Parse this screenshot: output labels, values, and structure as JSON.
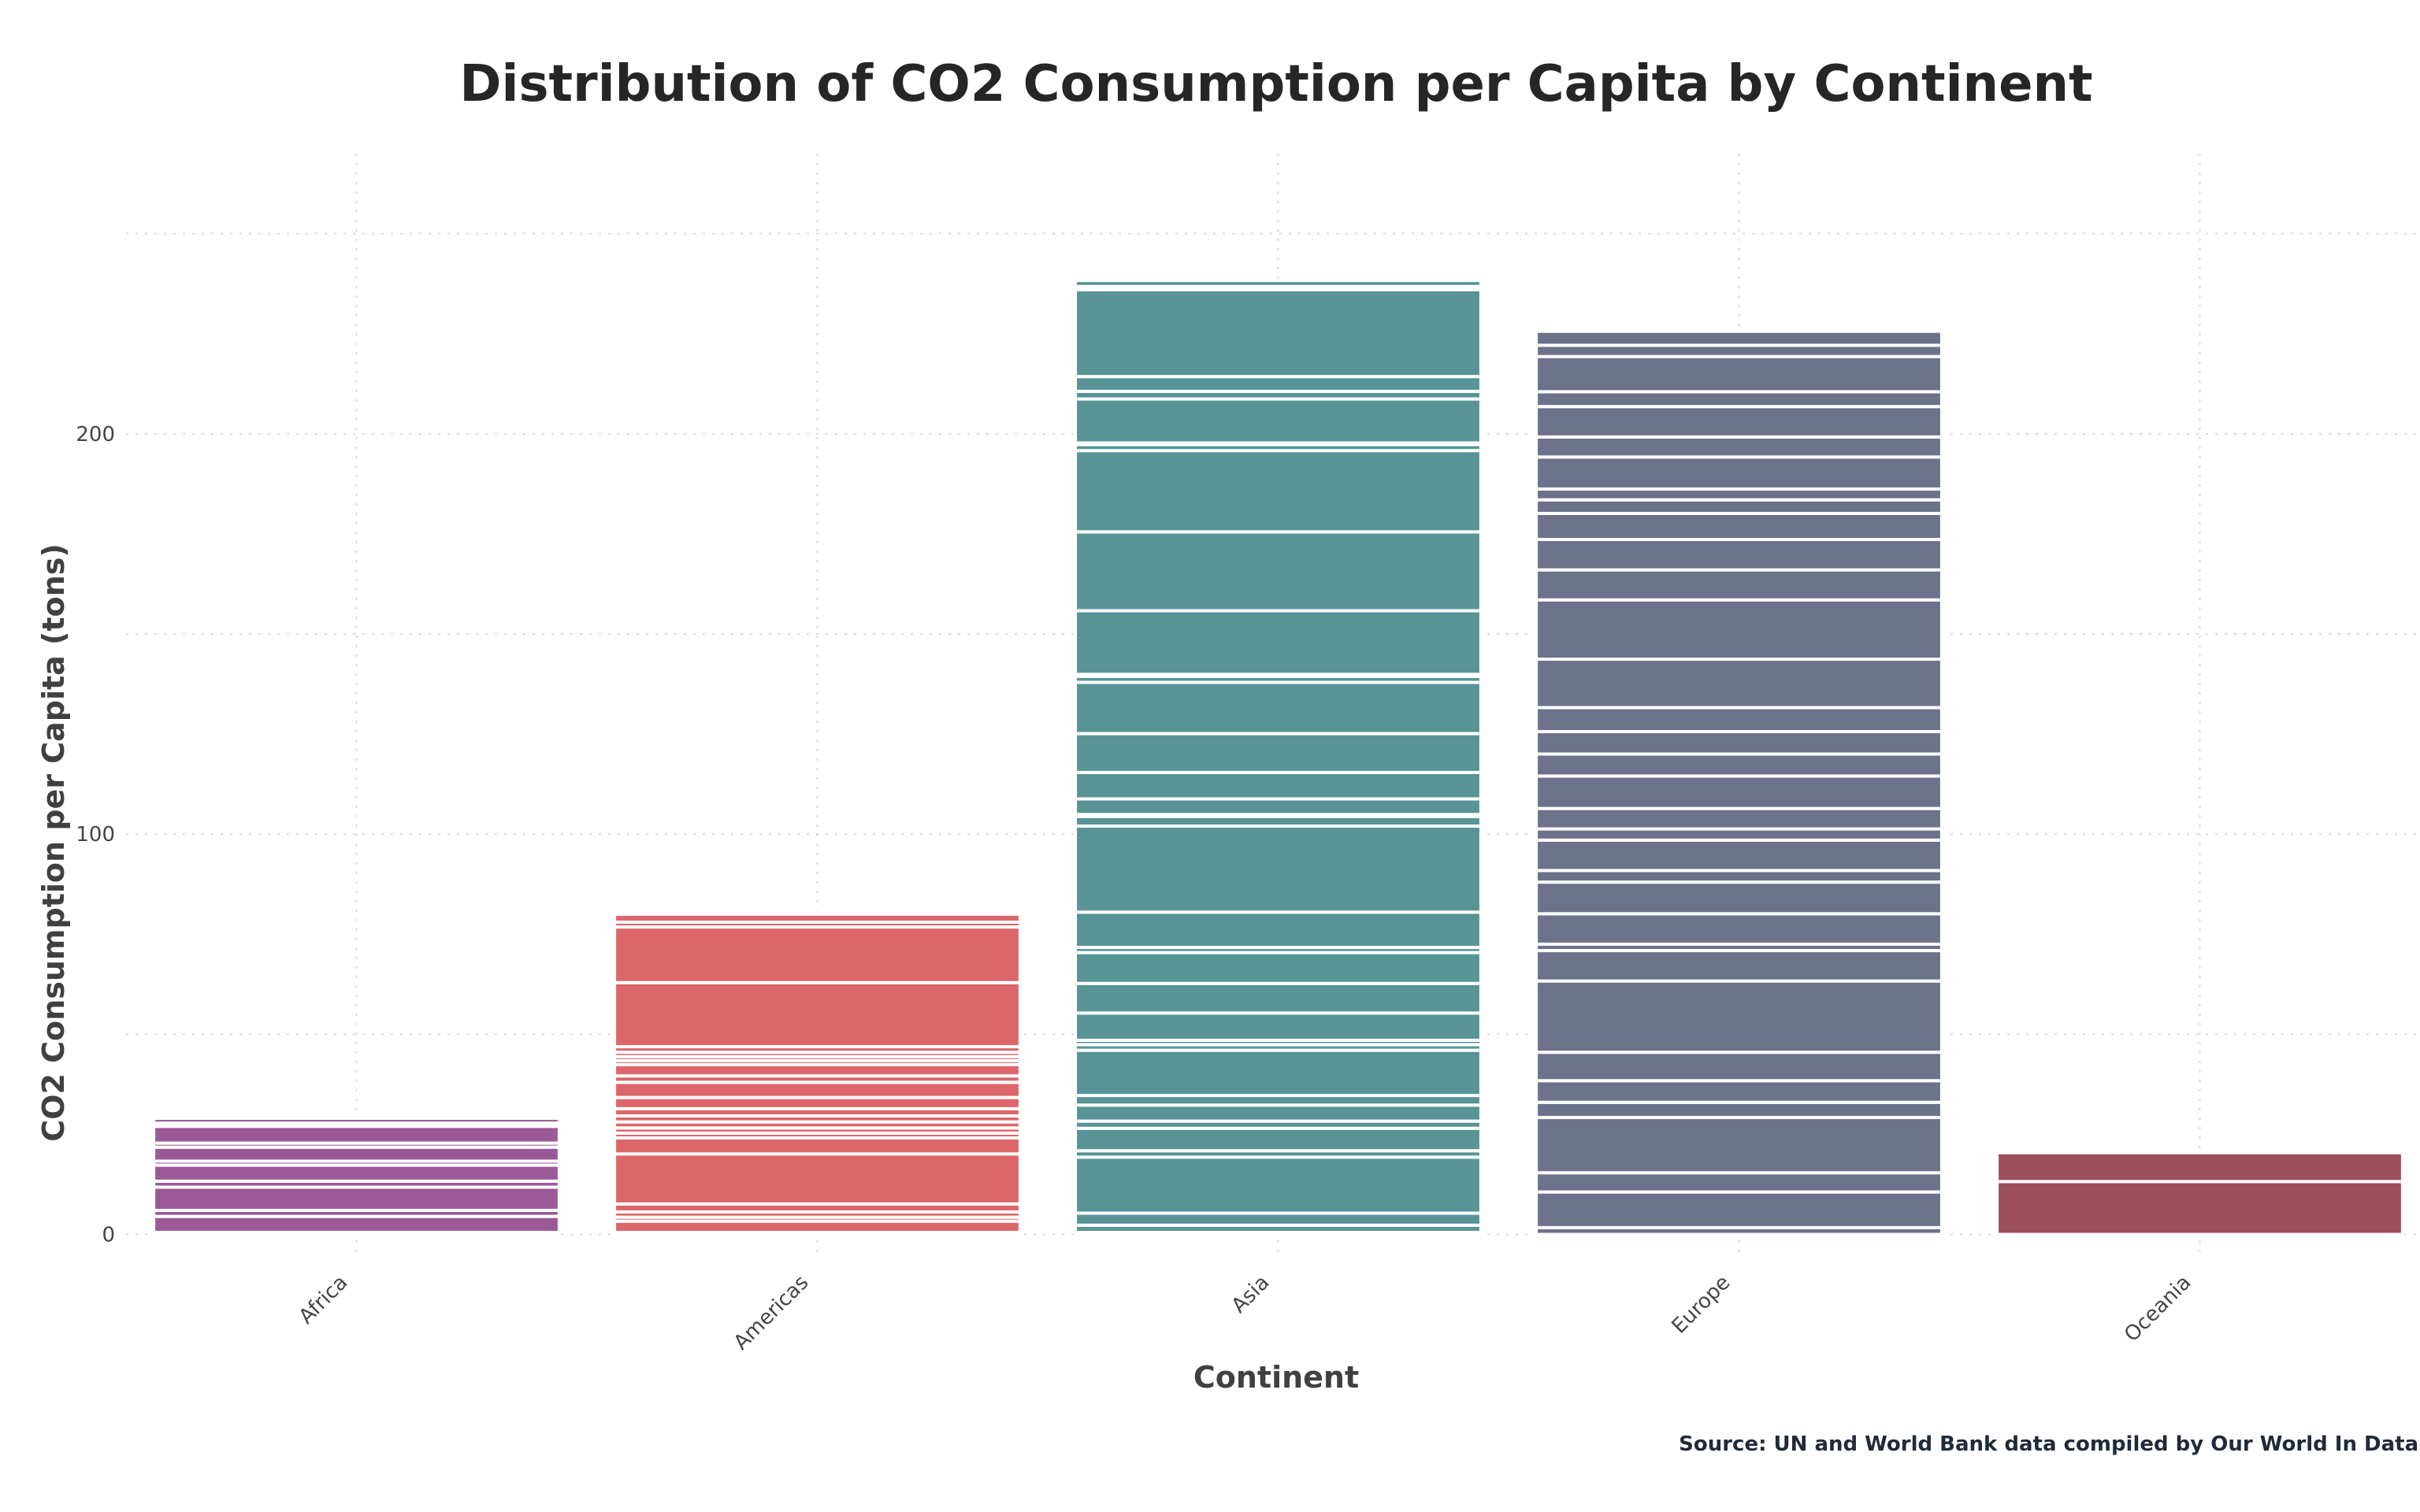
{
  "chart_data": {
    "type": "bar",
    "stacked": true,
    "title": "Distribution of CO2 Consumption per Capita by Continent",
    "xlabel": "Continent",
    "ylabel": "CO2 Consumption per Capita (tons)",
    "categories": [
      "Africa",
      "Americas",
      "Asia",
      "Europe",
      "Oceania"
    ],
    "ylim": [
      -6,
      270
    ],
    "yticks": [
      0,
      100,
      200
    ],
    "grid": true,
    "colors": {
      "Africa": "#9b5a97",
      "Americas": "#dc6669",
      "Asia": "#589496",
      "Europe": "#6b7289",
      "Oceania": "#9d4f5a"
    },
    "segments": {
      "Africa": [
        0.5,
        4.0,
        1.5,
        5.8,
        1.5,
        4.0,
        1.0,
        3.5,
        1.0,
        4.2,
        0.8,
        1.2
      ],
      "Americas": [
        0.5,
        2.8,
        1.0,
        1.3,
        2.0,
        12.5,
        4.0,
        1.2,
        1.3,
        1.5,
        1.5,
        1.8,
        2.8,
        3.8,
        1.6,
        2.8,
        1.0,
        1.0,
        1.1,
        1.4,
        16.0,
        13.9,
        1.2,
        2.0,
        0.6
      ],
      "Asia": [
        0.5,
        1.8,
        3.0,
        14.0,
        1.6,
        5.6,
        1.8,
        4.0,
        2.4,
        11.3,
        1.4,
        1.1,
        6.8,
        7.4,
        7.7,
        1.3,
        8.8,
        21.5,
        2.4,
        0.5,
        3.9,
        6.6,
        9.7,
        12.8,
        1.5,
        0.5,
        15.9,
        19.7,
        20.3,
        1.5,
        0.4,
        11.0,
        1.9,
        3.7,
        21.7,
        0.8,
        1.5
      ],
      "Europe": [
        1.7,
        8.9,
        4.8,
        13.8,
        3.8,
        5.4,
        7.1,
        17.8,
        7.6,
        1.6,
        7.6,
        7.9,
        2.9,
        7.6,
        2.8,
        5.1,
        8.1,
        5.5,
        5.6,
        6.0,
        12.1,
        14.8,
        7.5,
        7.6,
        6.5,
        3.4,
        2.7,
        8.0,
        5.0,
        7.6,
        3.7,
        8.8,
        2.8,
        3.5
      ]
    },
    "series_segments_note": "",
    "oceania_segments": [
      13.2,
      7.2
    ]
  },
  "source": "Source: UN and World Bank data compiled by Our World In Data."
}
